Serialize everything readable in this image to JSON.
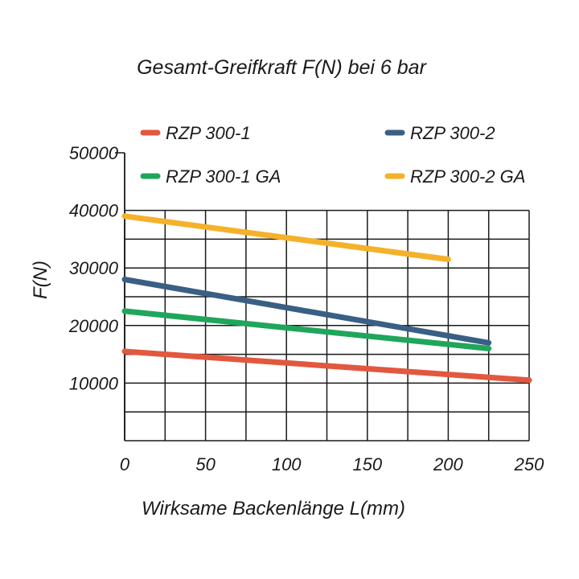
{
  "chart_data": {
    "type": "line",
    "title": "Gesamt-Greifkraft F(N) bei 6 bar",
    "xlabel": "Wirksame Backenlänge L(mm)",
    "ylabel": "F(N)",
    "xlim": [
      0,
      250
    ],
    "ylim": [
      0,
      50000
    ],
    "x_ticks": [
      "0",
      "50",
      "100",
      "150",
      "200",
      "250"
    ],
    "y_ticks": [
      "10000",
      "20000",
      "30000",
      "40000",
      "50000"
    ],
    "grid": true,
    "legend_position": "top",
    "series": [
      {
        "name": "RZP 300-1",
        "color": "#e2583e",
        "x": [
          0,
          250
        ],
        "y": [
          15500,
          10500
        ]
      },
      {
        "name": "RZP 300-2",
        "color": "#3a5f84",
        "x": [
          0,
          225
        ],
        "y": [
          28000,
          17000
        ]
      },
      {
        "name": "RZP 300-1 GA",
        "color": "#1fa65b",
        "x": [
          0,
          225
        ],
        "y": [
          22500,
          16000
        ]
      },
      {
        "name": "RZP 300-2 GA",
        "color": "#f5b12a",
        "x": [
          0,
          200
        ],
        "y": [
          39000,
          31500
        ]
      }
    ]
  }
}
